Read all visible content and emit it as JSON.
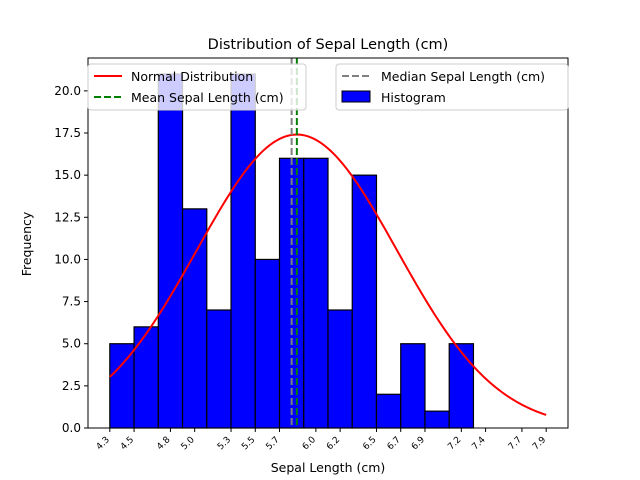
{
  "chart_data": {
    "type": "bar",
    "title": "Distribution of Sepal Length (cm)",
    "xlabel": "Sepal Length (cm)",
    "ylabel": "Frequency",
    "xlim": [
      4.12,
      8.08
    ],
    "ylim": [
      0,
      21.95
    ],
    "grid": false,
    "x_tick_values": [
      4.3,
      4.5,
      4.8,
      5.0,
      5.3,
      5.5,
      5.7,
      6.0,
      6.2,
      6.5,
      6.7,
      6.9,
      7.2,
      7.4,
      7.7,
      7.9
    ],
    "x_tick_labels": [
      "4.3",
      "4.5",
      "4.8",
      "5.0",
      "5.3",
      "5.5",
      "5.7",
      "6.0",
      "6.2",
      "6.5",
      "6.7",
      "6.9",
      "7.2",
      "7.4",
      "7.7",
      "7.9"
    ],
    "y_tick_values": [
      0,
      2.5,
      5,
      7.5,
      10,
      12.5,
      15,
      17.5,
      20
    ],
    "y_tick_labels": [
      "0.0",
      "2.5",
      "5.0",
      "7.5",
      "10.0",
      "12.5",
      "15.0",
      "17.5",
      "20.0"
    ],
    "histogram": {
      "name": "Histogram",
      "color": "#0000ff",
      "edge_color": "#000000",
      "bin_edges": [
        4.3,
        4.5,
        4.7,
        4.9,
        5.1,
        5.3,
        5.5,
        5.7,
        5.9,
        6.1,
        6.3,
        6.5,
        6.7,
        6.9,
        7.1,
        7.3,
        7.5,
        7.7,
        7.9
      ],
      "counts": [
        5,
        6,
        21,
        13,
        7,
        21,
        10,
        16,
        16,
        7,
        15,
        2,
        5,
        1,
        5,
        0,
        0,
        0
      ]
    },
    "normal_curve": {
      "name": "Normal Distribution",
      "color": "#ff0000",
      "mean": 5.843,
      "std": 0.825,
      "scale": 36.0,
      "x_range": [
        4.3,
        7.9
      ]
    },
    "mean_line": {
      "name": "Mean Sepal Length (cm)",
      "value": 5.843,
      "color": "#008000"
    },
    "median_line": {
      "name": "Median Sepal Length (cm)",
      "value": 5.8,
      "color": "#808080"
    },
    "legend": {
      "left": [
        "Normal Distribution",
        "Mean Sepal Length (cm)"
      ],
      "right": [
        "Median Sepal Length (cm)",
        "Histogram"
      ],
      "placement": "top, split left and right"
    }
  }
}
